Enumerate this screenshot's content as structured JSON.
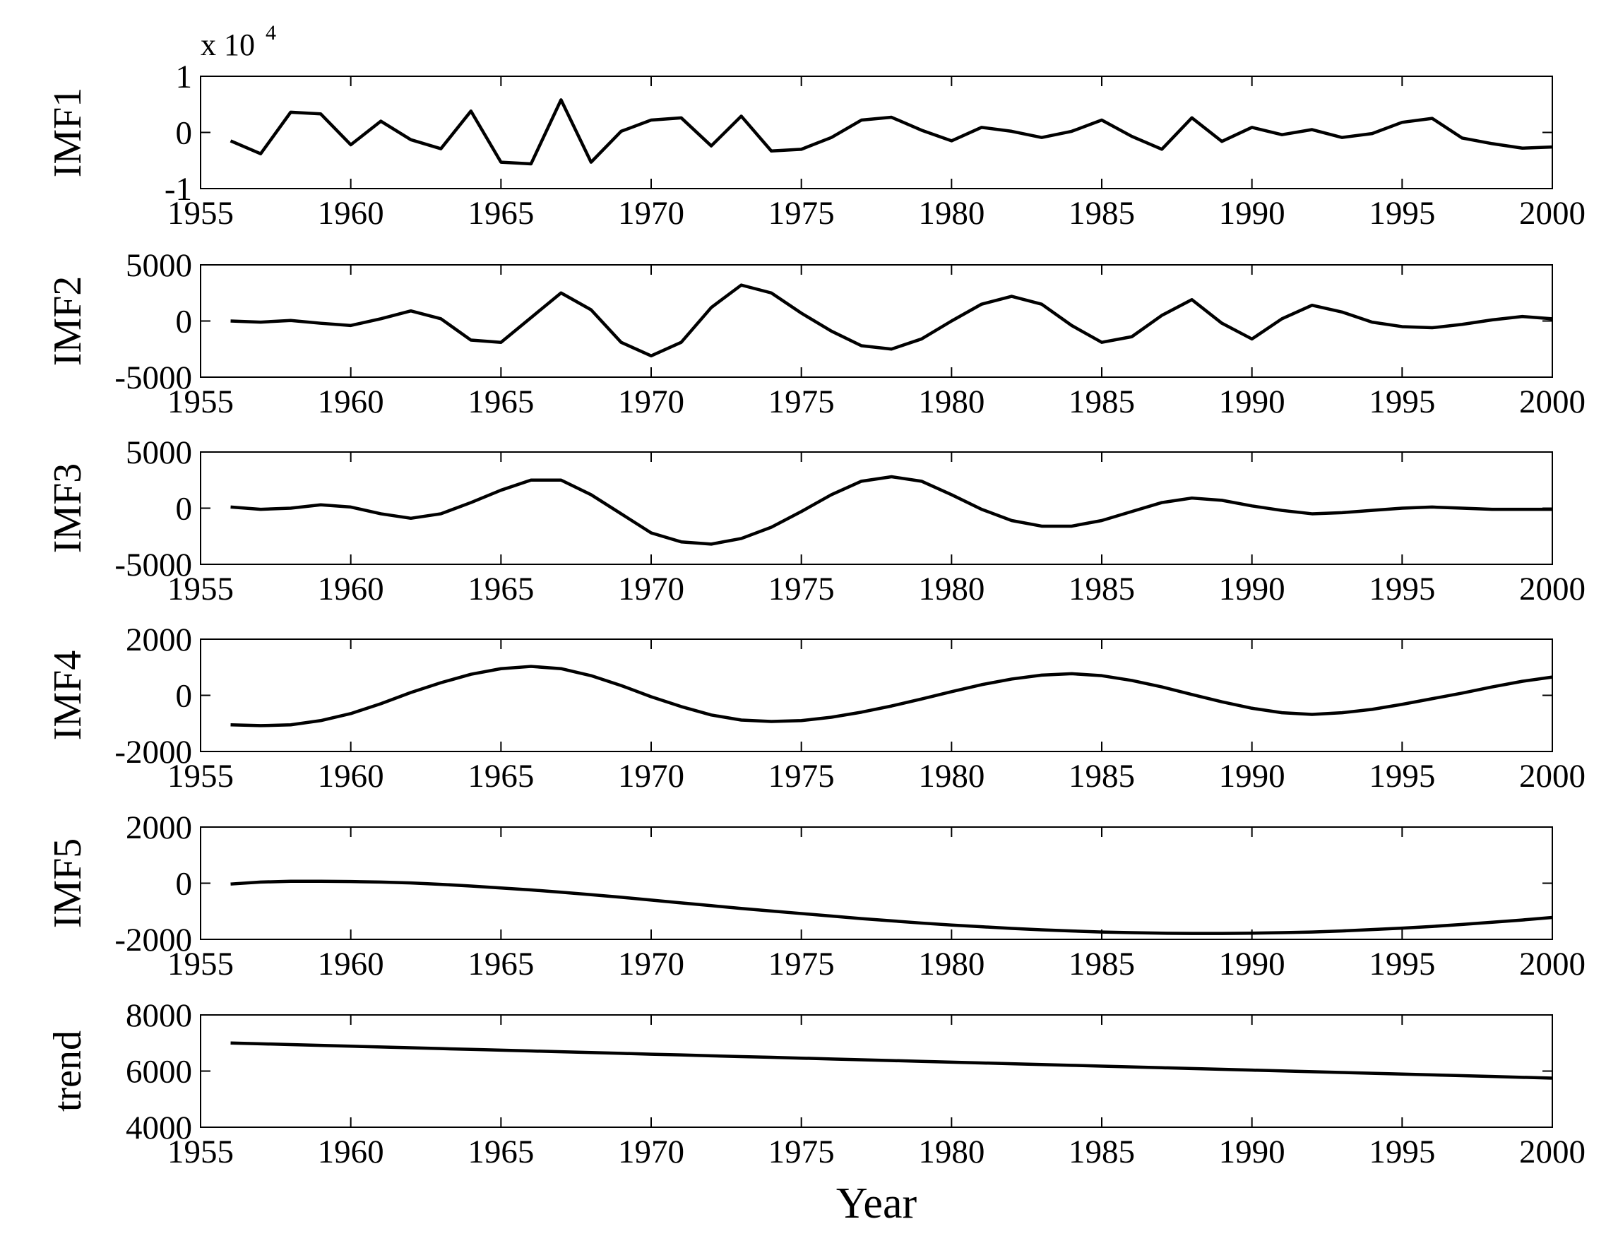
{
  "chart_data": [
    {
      "type": "line",
      "ylabel": "IMF1",
      "scale_label": {
        "base": "x 10",
        "exponent": "4"
      },
      "x": [
        1956,
        1957,
        1958,
        1959,
        1960,
        1961,
        1962,
        1963,
        1964,
        1965,
        1966,
        1967,
        1968,
        1969,
        1970,
        1971,
        1972,
        1973,
        1974,
        1975,
        1976,
        1977,
        1978,
        1979,
        1980,
        1981,
        1982,
        1983,
        1984,
        1985,
        1986,
        1987,
        1988,
        1989,
        1990,
        1991,
        1992,
        1993,
        1994,
        1995,
        1996,
        1997,
        1998,
        1999,
        2000
      ],
      "series": [
        {
          "color": "#000000",
          "values": [
            -0.15,
            -0.38,
            0.36,
            0.33,
            -0.22,
            0.2,
            -0.13,
            -0.29,
            0.38,
            -0.53,
            -0.56,
            0.58,
            -0.53,
            0.02,
            0.22,
            0.26,
            -0.24,
            0.29,
            -0.33,
            -0.3,
            -0.09,
            0.22,
            0.27,
            0.04,
            -0.15,
            0.09,
            0.02,
            -0.09,
            0.02,
            0.22,
            -0.07,
            -0.3,
            0.26,
            -0.16,
            0.09,
            -0.04,
            0.05,
            -0.09,
            -0.02,
            0.18,
            0.25,
            -0.1,
            -0.2,
            -0.28,
            -0.26
          ]
        }
      ],
      "xlim": [
        1955,
        2000
      ],
      "xticks": [
        1955,
        1960,
        1965,
        1970,
        1975,
        1980,
        1985,
        1990,
        1995,
        2000
      ],
      "ylim": [
        -1,
        1
      ],
      "yticks": [
        -1,
        0,
        1
      ]
    },
    {
      "type": "line",
      "ylabel": "IMF2",
      "x": [
        1956,
        1957,
        1958,
        1959,
        1960,
        1961,
        1962,
        1963,
        1964,
        1965,
        1966,
        1967,
        1968,
        1969,
        1970,
        1971,
        1972,
        1973,
        1974,
        1975,
        1976,
        1977,
        1978,
        1979,
        1980,
        1981,
        1982,
        1983,
        1984,
        1985,
        1986,
        1987,
        1988,
        1989,
        1990,
        1991,
        1992,
        1993,
        1994,
        1995,
        1996,
        1997,
        1998,
        1999,
        2000
      ],
      "series": [
        {
          "color": "#000000",
          "values": [
            0,
            -100,
            50,
            -200,
            -400,
            200,
            900,
            200,
            -1700,
            -1900,
            300,
            2500,
            1000,
            -1900,
            -3100,
            -1900,
            1200,
            3200,
            2500,
            700,
            -900,
            -2200,
            -2500,
            -1600,
            0,
            1500,
            2200,
            1500,
            -400,
            -1900,
            -1400,
            500,
            1900,
            -200,
            -1600,
            200,
            1400,
            800,
            -100,
            -500,
            -600,
            -300,
            100,
            400,
            200
          ]
        }
      ],
      "xlim": [
        1955,
        2000
      ],
      "xticks": [
        1955,
        1960,
        1965,
        1970,
        1975,
        1980,
        1985,
        1990,
        1995,
        2000
      ],
      "ylim": [
        -5000,
        5000
      ],
      "yticks": [
        -5000,
        0,
        5000
      ]
    },
    {
      "type": "line",
      "ylabel": "IMF3",
      "x": [
        1956,
        1957,
        1958,
        1959,
        1960,
        1961,
        1962,
        1963,
        1964,
        1965,
        1966,
        1967,
        1968,
        1969,
        1970,
        1971,
        1972,
        1973,
        1974,
        1975,
        1976,
        1977,
        1978,
        1979,
        1980,
        1981,
        1982,
        1983,
        1984,
        1985,
        1986,
        1987,
        1988,
        1989,
        1990,
        1991,
        1992,
        1993,
        1994,
        1995,
        1996,
        1997,
        1998,
        1999,
        2000
      ],
      "series": [
        {
          "color": "#000000",
          "values": [
            100,
            -100,
            0,
            300,
            100,
            -500,
            -900,
            -500,
            500,
            1600,
            2500,
            2500,
            1200,
            -500,
            -2200,
            -3000,
            -3200,
            -2700,
            -1700,
            -300,
            1200,
            2400,
            2800,
            2400,
            1200,
            -100,
            -1100,
            -1600,
            -1600,
            -1100,
            -300,
            500,
            900,
            700,
            200,
            -200,
            -500,
            -400,
            -200,
            0,
            100,
            0,
            -100,
            -100,
            -100
          ]
        }
      ],
      "xlim": [
        1955,
        2000
      ],
      "xticks": [
        1955,
        1960,
        1965,
        1970,
        1975,
        1980,
        1985,
        1990,
        1995,
        2000
      ],
      "ylim": [
        -5000,
        5000
      ],
      "yticks": [
        -5000,
        0,
        5000
      ]
    },
    {
      "type": "line",
      "ylabel": "IMF4",
      "x": [
        1956,
        1957,
        1958,
        1959,
        1960,
        1961,
        1962,
        1963,
        1964,
        1965,
        1966,
        1967,
        1968,
        1969,
        1970,
        1971,
        1972,
        1973,
        1974,
        1975,
        1976,
        1977,
        1978,
        1979,
        1980,
        1981,
        1982,
        1983,
        1984,
        1985,
        1986,
        1987,
        1988,
        1989,
        1990,
        1991,
        1992,
        1993,
        1994,
        1995,
        1996,
        1997,
        1998,
        1999,
        2000
      ],
      "series": [
        {
          "color": "#000000",
          "values": [
            -1050,
            -1080,
            -1050,
            -900,
            -650,
            -300,
            100,
            450,
            750,
            950,
            1030,
            950,
            700,
            350,
            -50,
            -400,
            -700,
            -880,
            -930,
            -900,
            -780,
            -600,
            -380,
            -130,
            130,
            380,
            580,
            720,
            770,
            700,
            530,
            300,
            30,
            -230,
            -460,
            -620,
            -680,
            -620,
            -500,
            -320,
            -120,
            80,
            300,
            500,
            650
          ]
        }
      ],
      "xlim": [
        1955,
        2000
      ],
      "xticks": [
        1955,
        1960,
        1965,
        1970,
        1975,
        1980,
        1985,
        1990,
        1995,
        2000
      ],
      "ylim": [
        -2000,
        2000
      ],
      "yticks": [
        -2000,
        0,
        2000
      ]
    },
    {
      "type": "line",
      "ylabel": "IMF5",
      "x": [
        1956,
        1957,
        1958,
        1959,
        1960,
        1961,
        1962,
        1963,
        1964,
        1965,
        1966,
        1967,
        1968,
        1969,
        1970,
        1971,
        1972,
        1973,
        1974,
        1975,
        1976,
        1977,
        1978,
        1979,
        1980,
        1981,
        1982,
        1983,
        1984,
        1985,
        1986,
        1987,
        1988,
        1989,
        1990,
        1991,
        1992,
        1993,
        1994,
        1995,
        1996,
        1997,
        1998,
        1999,
        2000
      ],
      "series": [
        {
          "color": "#000000",
          "values": [
            -30,
            40,
            70,
            70,
            60,
            40,
            10,
            -40,
            -100,
            -170,
            -240,
            -320,
            -410,
            -500,
            -600,
            -700,
            -800,
            -900,
            -990,
            -1080,
            -1170,
            -1260,
            -1340,
            -1420,
            -1490,
            -1550,
            -1610,
            -1660,
            -1700,
            -1740,
            -1760,
            -1780,
            -1790,
            -1790,
            -1780,
            -1760,
            -1740,
            -1700,
            -1650,
            -1600,
            -1540,
            -1470,
            -1390,
            -1310,
            -1220
          ]
        }
      ],
      "xlim": [
        1955,
        2000
      ],
      "xticks": [
        1955,
        1960,
        1965,
        1970,
        1975,
        1980,
        1985,
        1990,
        1995,
        2000
      ],
      "ylim": [
        -2000,
        2000
      ],
      "yticks": [
        -2000,
        0,
        2000
      ]
    },
    {
      "type": "line",
      "ylabel": "trend",
      "xlabel": "Year",
      "x": [
        1956,
        1957,
        1958,
        1959,
        1960,
        1961,
        1962,
        1963,
        1964,
        1965,
        1966,
        1967,
        1968,
        1969,
        1970,
        1971,
        1972,
        1973,
        1974,
        1975,
        1976,
        1977,
        1978,
        1979,
        1980,
        1981,
        1982,
        1983,
        1984,
        1985,
        1986,
        1987,
        1988,
        1989,
        1990,
        1991,
        1992,
        1993,
        1994,
        1995,
        1996,
        1997,
        1998,
        1999,
        2000
      ],
      "series": [
        {
          "color": "#000000",
          "values": [
            7000,
            6972,
            6943,
            6915,
            6886,
            6858,
            6830,
            6801,
            6773,
            6744,
            6716,
            6688,
            6659,
            6631,
            6602,
            6574,
            6545,
            6517,
            6489,
            6460,
            6432,
            6403,
            6375,
            6347,
            6318,
            6290,
            6261,
            6233,
            6205,
            6176,
            6148,
            6119,
            6091,
            6063,
            6034,
            6006,
            5977,
            5949,
            5920,
            5892,
            5864,
            5835,
            5807,
            5778,
            5750
          ]
        }
      ],
      "xlim": [
        1955,
        2000
      ],
      "xticks": [
        1955,
        1960,
        1965,
        1970,
        1975,
        1980,
        1985,
        1990,
        1995,
        2000
      ],
      "ylim": [
        4000,
        8000
      ],
      "yticks": [
        4000,
        6000,
        8000
      ]
    }
  ]
}
